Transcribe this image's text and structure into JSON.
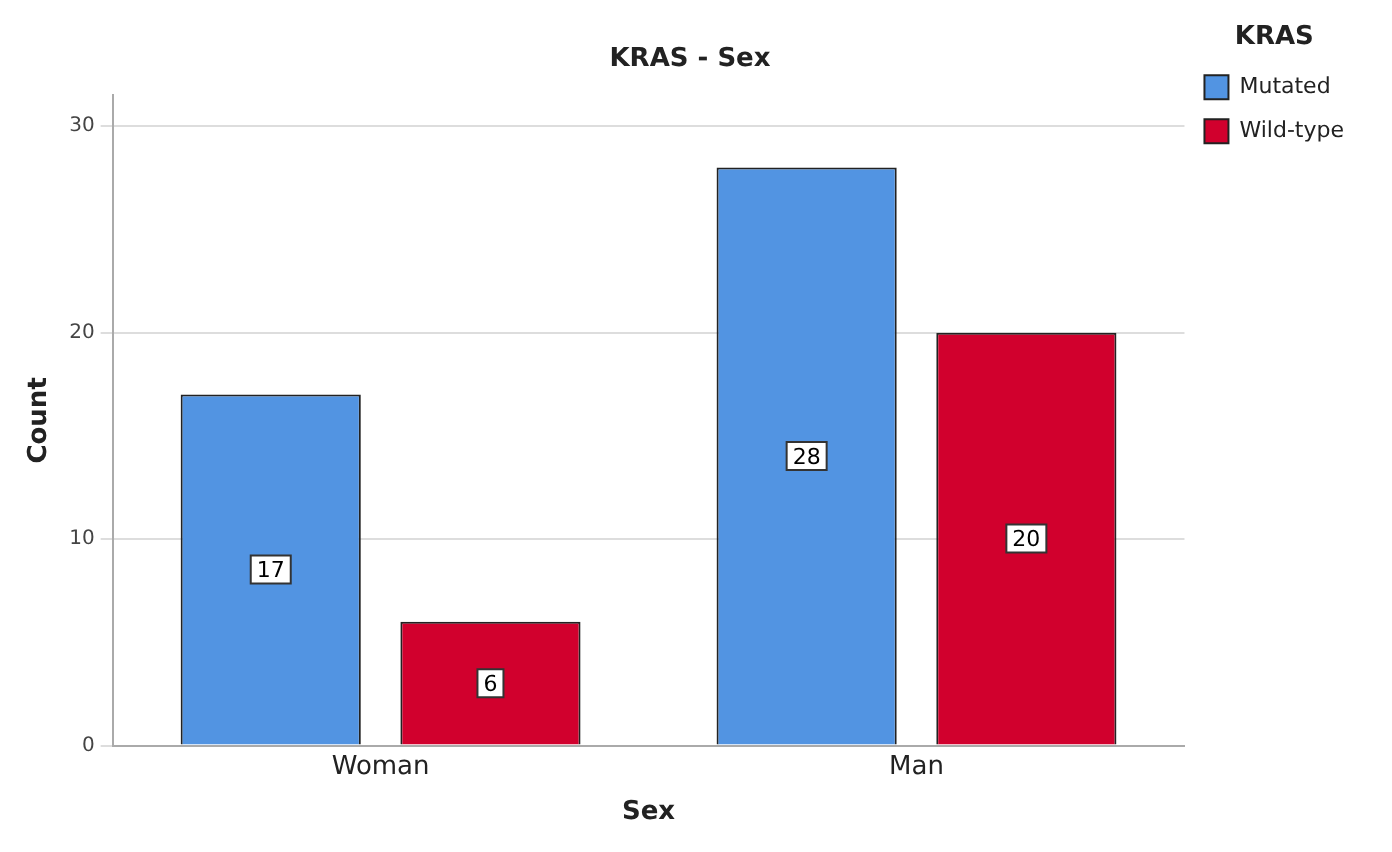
{
  "chart_data": {
    "type": "bar",
    "title": "KRAS - Sex",
    "xlabel": "Sex",
    "ylabel": "Count",
    "legend_title": "KRAS",
    "categories": [
      "Woman",
      "Man"
    ],
    "series": [
      {
        "name": "Mutated",
        "color": "#5294e2",
        "values": [
          17,
          28
        ]
      },
      {
        "name": "Wild-type",
        "color": "#d1002d",
        "values": [
          6,
          20
        ]
      }
    ],
    "ylim": [
      0,
      31.5
    ],
    "yticks": [
      0,
      10,
      20,
      30
    ],
    "grid": "y",
    "legend": "top right",
    "data_labels": true
  }
}
